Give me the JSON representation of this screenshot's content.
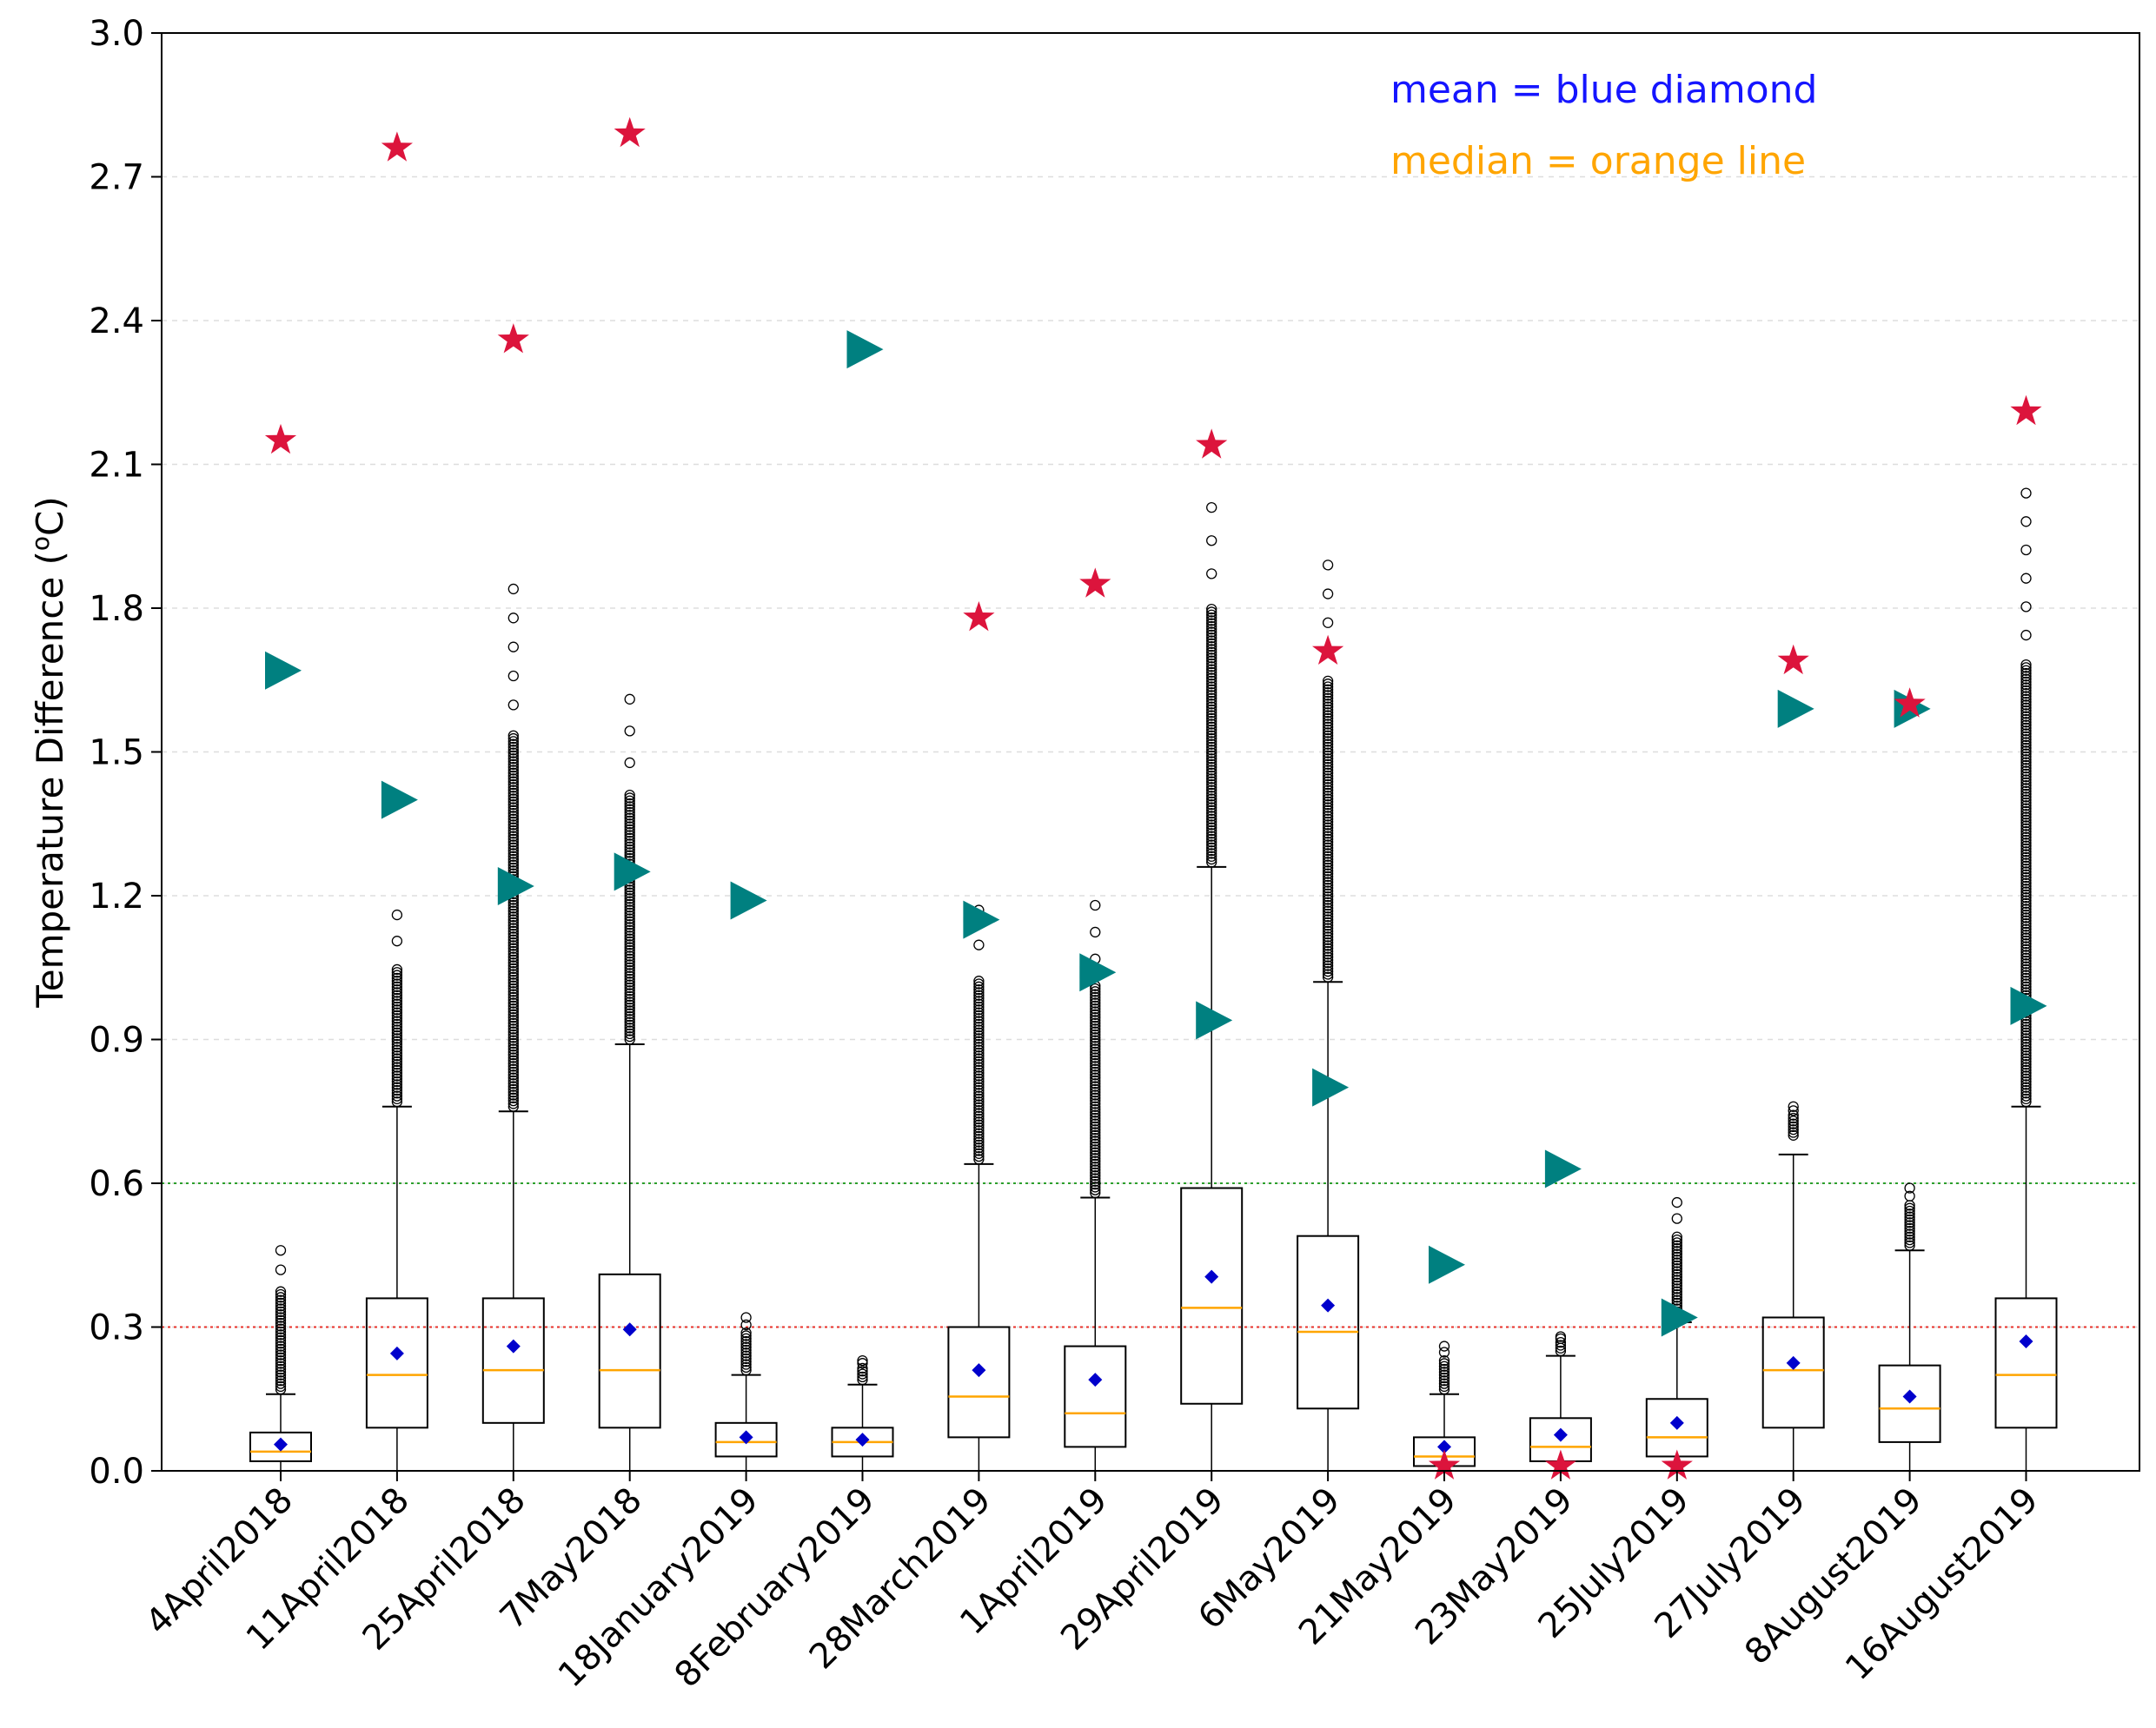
{
  "chart_data": {
    "type": "box",
    "title": "",
    "xlabel": "",
    "ylabel": "Temperature Difference (",
    "ylabel_sup": "o",
    "ylabel_unit": "C)",
    "ylim": [
      0.0,
      3.0
    ],
    "yticks": [
      "0.0",
      "0.3",
      "0.6",
      "0.9",
      "1.2",
      "1.5",
      "1.8",
      "2.1",
      "2.4",
      "2.7",
      "3.0"
    ],
    "grid": "horizontal dashed",
    "annotations": {
      "mean_text": "mean = blue diamond",
      "median_text": "median = orange line"
    },
    "colors": {
      "mean": "#0000cc",
      "median": "#ffa500",
      "star": "#dc143c",
      "triangle": "#008080",
      "line_green": "#2ca02c",
      "line_red": "#e8302a",
      "mean_text": "#1515ff",
      "median_text": "#ffa500"
    },
    "reference_lines": [
      {
        "value": 0.6,
        "color": "green",
        "style": "dotted"
      },
      {
        "value": 0.3,
        "color": "red",
        "style": "dotted"
      }
    ],
    "categories": [
      "4April2018",
      "11April2018",
      "25April2018",
      "7May2018",
      "18January2019",
      "8February2019",
      "28March2019",
      "1April2019",
      "29April2019",
      "6May2019",
      "21May2019",
      "23May2019",
      "25July2019",
      "27July2019",
      "8August2019",
      "16August2019"
    ],
    "boxes": [
      {
        "q1": 0.02,
        "median": 0.04,
        "q3": 0.08,
        "whisker_low": 0.0,
        "whisker_high": 0.16,
        "mean": 0.055,
        "outlier_min": 0.17,
        "outlier_max": 0.46,
        "star": 2.15,
        "triangle": 1.67
      },
      {
        "q1": 0.09,
        "median": 0.2,
        "q3": 0.36,
        "whisker_low": 0.0,
        "whisker_high": 0.76,
        "mean": 0.245,
        "outlier_min": 0.77,
        "outlier_max": 1.16,
        "star": 2.76,
        "triangle": 1.4
      },
      {
        "q1": 0.1,
        "median": 0.21,
        "q3": 0.36,
        "whisker_low": 0.0,
        "whisker_high": 0.75,
        "mean": 0.26,
        "outlier_min": 0.76,
        "outlier_max": 1.84,
        "star": 2.36,
        "triangle": 1.22
      },
      {
        "q1": 0.09,
        "median": 0.21,
        "q3": 0.41,
        "whisker_low": 0.0,
        "whisker_high": 0.89,
        "mean": 0.295,
        "outlier_min": 0.9,
        "outlier_max": 1.61,
        "star": 2.79,
        "triangle": 1.25
      },
      {
        "q1": 0.03,
        "median": 0.06,
        "q3": 0.1,
        "whisker_low": 0.0,
        "whisker_high": 0.2,
        "mean": 0.07,
        "outlier_min": 0.21,
        "outlier_max": 0.32,
        "star": null,
        "triangle": 1.19
      },
      {
        "q1": 0.03,
        "median": 0.06,
        "q3": 0.09,
        "whisker_low": 0.0,
        "whisker_high": 0.18,
        "mean": 0.065,
        "outlier_min": 0.19,
        "outlier_max": 0.23,
        "star": null,
        "triangle": 2.34
      },
      {
        "q1": 0.07,
        "median": 0.155,
        "q3": 0.3,
        "whisker_low": 0.0,
        "whisker_high": 0.64,
        "mean": 0.21,
        "outlier_min": 0.65,
        "outlier_max": 1.17,
        "star": 1.78,
        "triangle": 1.15
      },
      {
        "q1": 0.05,
        "median": 0.12,
        "q3": 0.26,
        "whisker_low": 0.0,
        "whisker_high": 0.57,
        "mean": 0.19,
        "outlier_min": 0.58,
        "outlier_max": 1.18,
        "star": 1.85,
        "triangle": 1.04
      },
      {
        "q1": 0.14,
        "median": 0.34,
        "q3": 0.59,
        "whisker_low": 0.0,
        "whisker_high": 1.26,
        "mean": 0.405,
        "outlier_min": 1.27,
        "outlier_max": 2.01,
        "star": 2.14,
        "triangle": 0.94
      },
      {
        "q1": 0.13,
        "median": 0.29,
        "q3": 0.49,
        "whisker_low": 0.0,
        "whisker_high": 1.02,
        "mean": 0.345,
        "outlier_min": 1.03,
        "outlier_max": 1.89,
        "star": 1.71,
        "triangle": 0.8
      },
      {
        "q1": 0.01,
        "median": 0.03,
        "q3": 0.07,
        "whisker_low": 0.0,
        "whisker_high": 0.16,
        "mean": 0.05,
        "outlier_min": 0.17,
        "outlier_max": 0.26,
        "star": 0.01,
        "triangle": 0.43
      },
      {
        "q1": 0.02,
        "median": 0.05,
        "q3": 0.11,
        "whisker_low": 0.0,
        "whisker_high": 0.24,
        "mean": 0.075,
        "outlier_min": 0.25,
        "outlier_max": 0.28,
        "star": 0.01,
        "triangle": 0.63
      },
      {
        "q1": 0.03,
        "median": 0.07,
        "q3": 0.15,
        "whisker_low": 0.0,
        "whisker_high": 0.31,
        "mean": 0.1,
        "outlier_min": 0.32,
        "outlier_max": 0.56,
        "star": 0.01,
        "triangle": 0.32
      },
      {
        "q1": 0.09,
        "median": 0.21,
        "q3": 0.32,
        "whisker_low": 0.0,
        "whisker_high": 0.66,
        "mean": 0.225,
        "outlier_min": 0.7,
        "outlier_max": 0.76,
        "star": 1.69,
        "triangle": 1.59
      },
      {
        "q1": 0.06,
        "median": 0.13,
        "q3": 0.22,
        "whisker_low": 0.0,
        "whisker_high": 0.46,
        "mean": 0.155,
        "outlier_min": 0.47,
        "outlier_max": 0.59,
        "star": 1.6,
        "triangle": 1.59
      },
      {
        "q1": 0.09,
        "median": 0.2,
        "q3": 0.36,
        "whisker_low": 0.0,
        "whisker_high": 0.76,
        "mean": 0.27,
        "outlier_min": 0.77,
        "outlier_max": 2.04,
        "star": 2.21,
        "triangle": 0.97
      }
    ]
  }
}
